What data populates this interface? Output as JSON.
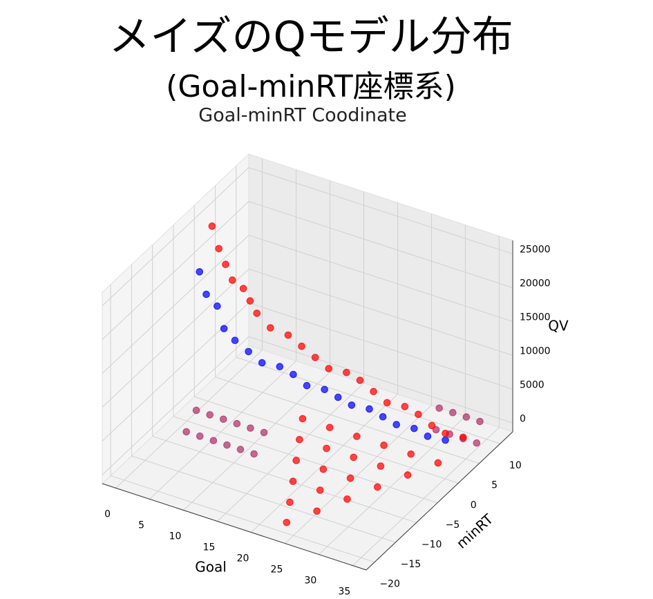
{
  "chart_data": {
    "type": "scatter3d",
    "title": "メイズのQモデル分布",
    "subtitle": "(Goal-minRT座標系)",
    "plot_title": "Goal-minRT Coodinate",
    "xlabel": "Goal",
    "ylabel": "minRT",
    "zlabel": "QV",
    "xlim": [
      -2,
      37
    ],
    "ylim": [
      -22,
      13
    ],
    "zlim": [
      -1300,
      27000
    ],
    "xticks": [
      0,
      5,
      10,
      15,
      20,
      25,
      30,
      35
    ],
    "yticks": [
      {
        "value": -20,
        "label": "−20"
      },
      {
        "value": -15,
        "label": "−15"
      },
      {
        "value": -10,
        "label": "−10"
      },
      {
        "value": -5,
        "label": "−5"
      },
      0,
      5,
      10
    ],
    "zticks": [
      0,
      5000,
      10000,
      15000,
      20000,
      25000
    ],
    "grid": true,
    "series": [
      {
        "color": "#0000ff",
        "x": [
          0,
          1,
          2,
          3,
          4,
          6,
          8,
          10,
          12,
          14,
          16,
          18,
          20,
          22,
          24,
          26,
          28,
          30,
          32
        ],
        "y": [
          -2,
          -2,
          -1,
          -1,
          0,
          0,
          0,
          1,
          1,
          1,
          2,
          2,
          2,
          3,
          3,
          3,
          4,
          4,
          5
        ],
        "z": [
          19000,
          16000,
          14000,
          11000,
          9000,
          8000,
          7000,
          6500,
          6000,
          5000,
          4500,
          4000,
          3500,
          3000,
          2500,
          2000,
          1500,
          1000,
          500
        ]
      },
      {
        "color": "#b0306a",
        "x": [
          2,
          4,
          6,
          8,
          10,
          12,
          3,
          5,
          7,
          9,
          11,
          13,
          28,
          30,
          32,
          34,
          30,
          32,
          34,
          36
        ],
        "y": [
          -6,
          -6,
          -6,
          -6,
          -6,
          -6,
          -10,
          -10,
          -10,
          -10,
          -10,
          -10,
          10,
          10,
          10,
          10,
          6,
          6,
          6,
          6
        ],
        "z": [
          1500,
          1500,
          1500,
          1500,
          1500,
          1500,
          1000,
          1000,
          1000,
          1000,
          1000,
          1000,
          1000,
          1000,
          1000,
          1000,
          800,
          800,
          800,
          800
        ]
      },
      {
        "color": "#ff0000",
        "x": [
          0,
          1,
          2,
          3,
          4,
          5,
          6,
          8,
          10,
          12,
          14,
          16,
          18,
          20,
          22,
          24,
          26,
          28,
          30,
          32,
          34,
          24,
          22,
          26,
          20,
          24,
          28,
          18,
          22,
          26,
          30,
          16,
          20,
          24,
          28,
          32,
          14,
          18,
          22,
          26,
          30,
          34
        ],
        "y": [
          1,
          1,
          1,
          1,
          2,
          2,
          2,
          2,
          3,
          3,
          3,
          3,
          4,
          4,
          4,
          4,
          5,
          5,
          5,
          5,
          6,
          -20,
          -16,
          -16,
          -12,
          -12,
          -12,
          -8,
          -8,
          -8,
          -8,
          -4,
          -4,
          -4,
          -4,
          -4,
          0,
          0,
          0,
          0,
          0,
          0
        ],
        "z": [
          24000,
          21000,
          19000,
          17000,
          15500,
          14000,
          12500,
          11000,
          10000,
          9000,
          8000,
          7000,
          6500,
          6000,
          5000,
          4000,
          3500,
          3000,
          2000,
          1500,
          1000,
          300,
          300,
          300,
          400,
          400,
          400,
          500,
          500,
          500,
          500,
          600,
          600,
          600,
          600,
          600,
          700,
          700,
          700,
          700,
          700,
          700
        ]
      }
    ]
  }
}
